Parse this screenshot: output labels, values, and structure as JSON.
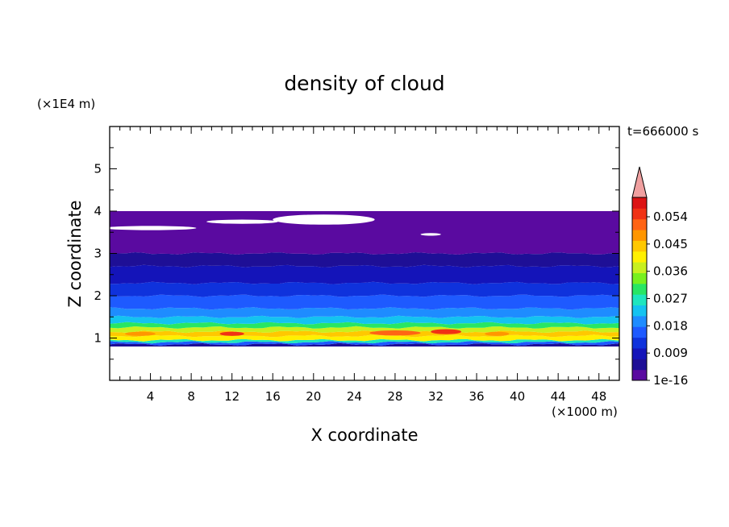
{
  "chart_data": {
    "type": "heatmap",
    "title": "density of cloud",
    "xlabel": "X coordinate",
    "ylabel": "Z coordinate",
    "x_unit": "(×1000 m)",
    "y_unit": "(×1E4 m)",
    "time_label": "t=666000 s",
    "xlim": [
      0,
      50
    ],
    "ylim": [
      0,
      6
    ],
    "x_ticks": [
      4,
      8,
      12,
      16,
      20,
      24,
      28,
      32,
      36,
      40,
      44,
      48
    ],
    "y_ticks": [
      1,
      2,
      3,
      4,
      5
    ],
    "colorbar": {
      "labels": [
        "1e-16",
        "0.009",
        "0.018",
        "0.027",
        "0.036",
        "0.045",
        "0.054"
      ],
      "colors": [
        "#5a0aa0",
        "#1e0f96",
        "#1414b9",
        "#0f32dc",
        "#1e5aff",
        "#1e8cff",
        "#14c3f0",
        "#1ee6be",
        "#28e664",
        "#78f01e",
        "#c8f01e",
        "#fff000",
        "#ffc800",
        "#ff9600",
        "#ff6414",
        "#f03214",
        "#dc1414"
      ],
      "extend_color": "#f0a0a0"
    },
    "layers": [
      {
        "zmin": 0.8,
        "zmax": 0.85,
        "color": "#1e0f96"
      },
      {
        "zmin": 0.85,
        "zmax": 0.9,
        "color": "#1e5aff"
      },
      {
        "zmin": 0.9,
        "zmax": 0.95,
        "color": "#1ee6be"
      },
      {
        "zmin": 0.95,
        "zmax": 1.05,
        "color": "#fff000"
      },
      {
        "zmin": 1.05,
        "zmax": 1.15,
        "color": "#ffc800"
      },
      {
        "zmin": 1.15,
        "zmax": 1.25,
        "color": "#c8f01e"
      },
      {
        "zmin": 1.25,
        "zmax": 1.35,
        "color": "#28e664"
      },
      {
        "zmin": 1.35,
        "zmax": 1.5,
        "color": "#14c3f0"
      },
      {
        "zmin": 1.5,
        "zmax": 1.7,
        "color": "#1e8cff"
      },
      {
        "zmin": 1.7,
        "zmax": 2.0,
        "color": "#1e5aff"
      },
      {
        "zmin": 2.0,
        "zmax": 2.3,
        "color": "#0f32dc"
      },
      {
        "zmin": 2.3,
        "zmax": 2.7,
        "color": "#1414b9"
      },
      {
        "zmin": 2.7,
        "zmax": 3.0,
        "color": "#1e0f96"
      },
      {
        "zmin": 3.0,
        "zmax": 4.0,
        "color": "#5a0aa0"
      }
    ],
    "hot_spots": [
      {
        "x": 12,
        "z": 1.1,
        "rx": 1.2,
        "rz": 0.05,
        "color": "#f03214"
      },
      {
        "x": 28,
        "z": 1.12,
        "rx": 2.5,
        "rz": 0.06,
        "color": "#ff6414"
      },
      {
        "x": 33,
        "z": 1.15,
        "rx": 1.5,
        "rz": 0.06,
        "color": "#f03214"
      },
      {
        "x": 38,
        "z": 1.1,
        "rx": 1.2,
        "rz": 0.05,
        "color": "#ff9600"
      },
      {
        "x": 3,
        "z": 1.1,
        "rx": 1.5,
        "rz": 0.05,
        "color": "#ff9600"
      }
    ],
    "cloud_gaps": [
      {
        "x": 4,
        "z": 3.6,
        "rx": 4.5,
        "rz": 0.05
      },
      {
        "x": 13,
        "z": 3.75,
        "rx": 3.5,
        "rz": 0.05
      },
      {
        "x": 21,
        "z": 3.8,
        "rx": 5,
        "rz": 0.12
      },
      {
        "x": 31.5,
        "z": 3.45,
        "rx": 1,
        "rz": 0.03
      }
    ]
  }
}
